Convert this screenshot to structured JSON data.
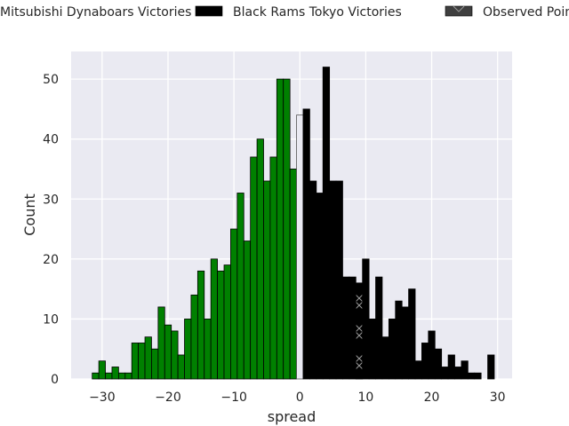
{
  "chart_data": {
    "type": "bar",
    "xlabel": "spread",
    "ylabel": "Count",
    "xlim": [
      -34.7,
      32.2
    ],
    "ylim": [
      0,
      54.6
    ],
    "xticks": [
      -30,
      -20,
      -10,
      0,
      10,
      20,
      30
    ],
    "yticks": [
      0,
      10,
      20,
      30,
      40,
      50
    ],
    "grid": true,
    "legend_position": "top, above plot",
    "legend": [
      {
        "label": "Mitsubishi Dynaboars Victories",
        "color": "#008000"
      },
      {
        "label": "Black Rams Tokyo Victories",
        "color": "#000000"
      },
      {
        "label": "Observed Point Spread",
        "color": "#3f3f3f",
        "hatch": "x"
      }
    ],
    "series": [
      {
        "name": "Mitsubishi Dynaboars Victories",
        "color": "#008000",
        "x": [
          -31,
          -30,
          -29,
          -28,
          -27,
          -26,
          -25,
          -24,
          -23,
          -22,
          -21,
          -20,
          -19,
          -18,
          -17,
          -16,
          -15,
          -14,
          -13,
          -12,
          -11,
          -10,
          -9,
          -8,
          -7,
          -6,
          -5,
          -4,
          -3,
          -2,
          -1
        ],
        "values": [
          1,
          3,
          1,
          2,
          1,
          1,
          6,
          6,
          7,
          5,
          12,
          9,
          8,
          4,
          10,
          14,
          18,
          10,
          20,
          18,
          19,
          25,
          31,
          23,
          37,
          40,
          33,
          37,
          50,
          50,
          35
        ]
      },
      {
        "name": "",
        "color": "#eaeaf2",
        "x": [
          0
        ],
        "values": [
          44
        ]
      },
      {
        "name": "Black Rams Tokyo Victories",
        "color": "#000000",
        "x": [
          1,
          2,
          3,
          4,
          5,
          6,
          7,
          8,
          9,
          10,
          11,
          12,
          13,
          14,
          15,
          16,
          17,
          18,
          19,
          20,
          21,
          22,
          23,
          24,
          25,
          26,
          27,
          29
        ],
        "values": [
          45,
          33,
          31,
          52,
          33,
          33,
          17,
          17,
          16,
          20,
          10,
          17,
          7,
          10,
          13,
          12,
          15,
          3,
          6,
          8,
          5,
          2,
          4,
          2,
          3,
          1,
          1,
          4
        ]
      },
      {
        "name": "Observed Point Spread",
        "color": "#3f3f3f",
        "hatch": "x",
        "x": [
          9
        ],
        "values": [
          16
        ]
      }
    ]
  }
}
